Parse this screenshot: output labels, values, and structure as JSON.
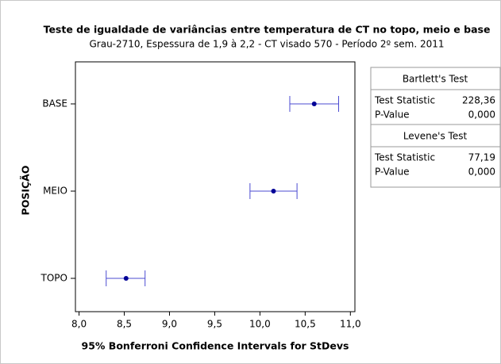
{
  "chart_data": {
    "type": "interval",
    "title": "Teste de igualdade de variâncias entre temperatura de CT no topo, meio e base",
    "subtitle": "Grau-2710, Espessura de 1,9 à 2,2 - CT visado 570 - Período 2º sem. 2011",
    "x_label": "95% Bonferroni Confidence Intervals for StDevs",
    "y_label": "POSIÇÃO",
    "categories": [
      "BASE",
      "MEIO",
      "TOPO"
    ],
    "series": [
      {
        "color": "#4b4bd2",
        "point_color": "#000096",
        "values": [
          10.6,
          10.15,
          8.52
        ],
        "lower": [
          10.33,
          9.89,
          8.3
        ],
        "upper": [
          10.87,
          10.41,
          8.73
        ]
      }
    ],
    "xlim": [
      7.96,
      11.05
    ],
    "xticks": [
      {
        "value": 8,
        "label": "8,0"
      },
      {
        "value": 8.5,
        "label": "8,5"
      },
      {
        "value": 9,
        "label": "9,0"
      },
      {
        "value": 9.5,
        "label": "9,5"
      },
      {
        "value": 10,
        "label": "10,0"
      },
      {
        "value": 10.5,
        "label": "10,5"
      },
      {
        "value": 11,
        "label": "11,0"
      }
    ],
    "tests": [
      {
        "name": "Bartlett's Test",
        "rows": [
          [
            "Test Statistic",
            "228,36"
          ],
          [
            "P-Value",
            "0,000"
          ]
        ]
      },
      {
        "name": "Levene's Test",
        "rows": [
          [
            "Test Statistic",
            "77,19"
          ],
          [
            "P-Value",
            "0,000"
          ]
        ]
      }
    ]
  }
}
